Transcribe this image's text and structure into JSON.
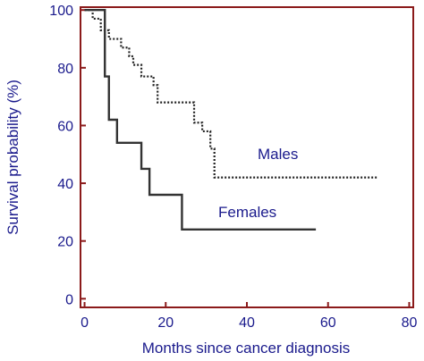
{
  "chart_data": {
    "type": "line",
    "xlabel": "Months since cancer diagnosis",
    "ylabel": "Survival probability (%)",
    "xlim": [
      -1,
      81
    ],
    "ylim": [
      -3,
      101
    ],
    "x_ticks": [
      0,
      20,
      40,
      60,
      80
    ],
    "y_ticks": [
      0,
      20,
      40,
      60,
      80,
      100
    ],
    "axis_color": "#8b1a1a",
    "text_color": "#1a1a8c",
    "series": [
      {
        "name": "Males",
        "style": "dotted",
        "color": "#222222",
        "x": [
          0,
          2,
          4,
          6,
          9,
          11,
          12,
          14,
          17,
          18,
          27,
          29,
          31,
          32,
          72
        ],
        "y": [
          100,
          97,
          93,
          90,
          87,
          84,
          81,
          77,
          74,
          68,
          61,
          58,
          52,
          42,
          42
        ]
      },
      {
        "name": "Females",
        "style": "solid",
        "color": "#333333",
        "x": [
          0,
          5,
          6,
          8,
          14,
          16,
          24,
          57
        ],
        "y": [
          100,
          77,
          62,
          54,
          45,
          36,
          24,
          24
        ]
      }
    ]
  }
}
